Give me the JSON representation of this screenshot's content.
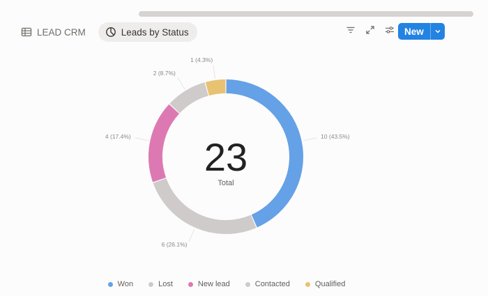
{
  "tabs": [
    {
      "label": "LEAD CRM",
      "icon": "table-icon",
      "active": false
    },
    {
      "label": "Leads by Status",
      "icon": "pie-chart-icon",
      "active": true
    }
  ],
  "toolbar": {
    "icons": [
      "filter-icon",
      "expand-icon",
      "settings-sliders-icon"
    ],
    "new_label": "New"
  },
  "colors": {
    "won": "#65a1e6",
    "lost": "#cfcbcb",
    "new_lead": "#dd79b2",
    "contacted": "#cfcbcb",
    "qualified": "#e8c273",
    "accent": "#2383e2"
  },
  "chart_data": {
    "type": "pie",
    "total": "23",
    "total_label": "Total",
    "slices": [
      {
        "name": "Won",
        "value": 10,
        "label": "10 (43.5%)",
        "color": "#65a1e6"
      },
      {
        "name": "Lost",
        "value": 6,
        "label": "6 (26.1%)",
        "color": "#cfcbcb"
      },
      {
        "name": "New lead",
        "value": 4,
        "label": "4 (17.4%)",
        "color": "#dd79b2"
      },
      {
        "name": "Contacted",
        "value": 2,
        "label": "2 (8.7%)",
        "color": "#cfcbcb"
      },
      {
        "name": "Qualified",
        "value": 1,
        "label": "1 (4.3%)",
        "color": "#e8c273"
      }
    ],
    "legend": [
      "Won",
      "Lost",
      "New lead",
      "Contacted",
      "Qualified"
    ],
    "legend_position": "bottom"
  }
}
